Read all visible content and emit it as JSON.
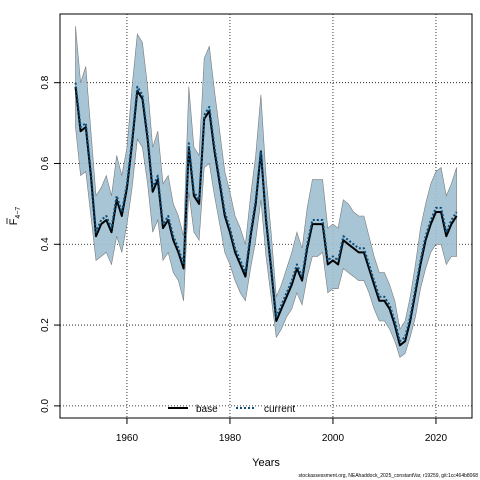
{
  "chart_data": {
    "type": "line",
    "xlabel": "Years",
    "ylabel": "F",
    "ylabel_subscript": "4−7",
    "xlim": [
      1947,
      2027
    ],
    "ylim": [
      -0.03,
      0.97
    ],
    "xticks": [
      1960,
      1980,
      2000,
      2020
    ],
    "yticks": [
      0.0,
      0.2,
      0.4,
      0.6,
      0.8
    ],
    "x_tick_labels": [
      "1960",
      "1980",
      "2000",
      "2020"
    ],
    "y_tick_labels": [
      "0.0",
      "0.2",
      "0.4",
      "0.6",
      "0.8"
    ],
    "grid": true,
    "legend_position": "bottom-center",
    "caption": "stockassessment.org, NEAhaddock_2025_constantVar, r19259, git:1cc464b8068",
    "colors": {
      "band_fill": "#9fbfd1",
      "band_edge": "#7a7a7a",
      "base_line": "#000000",
      "current_line": "#0a4d7a"
    },
    "x": [
      1950,
      1951,
      1952,
      1953,
      1954,
      1955,
      1956,
      1957,
      1958,
      1959,
      1960,
      1961,
      1962,
      1963,
      1964,
      1965,
      1966,
      1967,
      1968,
      1969,
      1970,
      1971,
      1972,
      1973,
      1974,
      1975,
      1976,
      1977,
      1978,
      1979,
      1980,
      1981,
      1982,
      1983,
      1984,
      1985,
      1986,
      1987,
      1988,
      1989,
      1990,
      1991,
      1992,
      1993,
      1994,
      1995,
      1996,
      1997,
      1998,
      1999,
      2000,
      2001,
      2002,
      2003,
      2004,
      2005,
      2006,
      2007,
      2008,
      2009,
      2010,
      2011,
      2012,
      2013,
      2014,
      2015,
      2016,
      2017,
      2018,
      2019,
      2020,
      2021,
      2022,
      2023,
      2024
    ],
    "series": [
      {
        "name": "base",
        "style": "solid",
        "values": [
          0.79,
          0.68,
          0.69,
          0.57,
          0.42,
          0.45,
          0.46,
          0.43,
          0.51,
          0.47,
          0.54,
          0.65,
          0.78,
          0.76,
          0.66,
          0.53,
          0.56,
          0.44,
          0.46,
          0.41,
          0.38,
          0.34,
          0.64,
          0.52,
          0.5,
          0.71,
          0.73,
          0.63,
          0.55,
          0.47,
          0.43,
          0.38,
          0.35,
          0.32,
          0.42,
          0.5,
          0.63,
          0.46,
          0.34,
          0.21,
          0.24,
          0.27,
          0.3,
          0.34,
          0.31,
          0.39,
          0.45,
          0.45,
          0.45,
          0.35,
          0.36,
          0.35,
          0.41,
          0.4,
          0.39,
          0.38,
          0.38,
          0.34,
          0.3,
          0.26,
          0.26,
          0.24,
          0.2,
          0.15,
          0.16,
          0.21,
          0.28,
          0.35,
          0.41,
          0.45,
          0.48,
          0.48,
          0.42,
          0.45,
          0.47
        ]
      },
      {
        "name": "current",
        "style": "dotted",
        "values": [
          0.8,
          0.69,
          0.7,
          0.58,
          0.43,
          0.46,
          0.47,
          0.44,
          0.52,
          0.48,
          0.55,
          0.66,
          0.79,
          0.77,
          0.67,
          0.54,
          0.57,
          0.45,
          0.47,
          0.42,
          0.39,
          0.35,
          0.65,
          0.53,
          0.51,
          0.72,
          0.74,
          0.64,
          0.56,
          0.48,
          0.44,
          0.39,
          0.36,
          0.33,
          0.43,
          0.51,
          0.63,
          0.47,
          0.35,
          0.22,
          0.25,
          0.28,
          0.31,
          0.35,
          0.32,
          0.4,
          0.46,
          0.46,
          0.46,
          0.36,
          0.37,
          0.36,
          0.42,
          0.41,
          0.4,
          0.39,
          0.39,
          0.35,
          0.31,
          0.27,
          0.27,
          0.25,
          0.21,
          0.16,
          0.17,
          0.22,
          0.29,
          0.36,
          0.42,
          0.46,
          0.49,
          0.49,
          0.43,
          0.46,
          0.48
        ]
      }
    ],
    "band": {
      "lower": [
        0.69,
        0.57,
        0.58,
        0.47,
        0.36,
        0.37,
        0.38,
        0.35,
        0.42,
        0.38,
        0.45,
        0.54,
        0.66,
        0.64,
        0.55,
        0.43,
        0.46,
        0.36,
        0.38,
        0.33,
        0.31,
        0.26,
        0.53,
        0.43,
        0.41,
        0.59,
        0.6,
        0.52,
        0.45,
        0.38,
        0.35,
        0.31,
        0.28,
        0.26,
        0.34,
        0.41,
        0.51,
        0.37,
        0.27,
        0.17,
        0.19,
        0.22,
        0.24,
        0.28,
        0.25,
        0.32,
        0.37,
        0.37,
        0.38,
        0.28,
        0.29,
        0.29,
        0.34,
        0.33,
        0.32,
        0.31,
        0.31,
        0.28,
        0.24,
        0.21,
        0.21,
        0.19,
        0.16,
        0.12,
        0.13,
        0.17,
        0.22,
        0.29,
        0.34,
        0.38,
        0.4,
        0.4,
        0.35,
        0.37,
        0.37
      ],
      "upper": [
        0.94,
        0.8,
        0.84,
        0.68,
        0.52,
        0.54,
        0.57,
        0.52,
        0.62,
        0.57,
        0.64,
        0.79,
        0.92,
        0.9,
        0.79,
        0.64,
        0.68,
        0.55,
        0.57,
        0.5,
        0.47,
        0.42,
        0.79,
        0.64,
        0.62,
        0.86,
        0.89,
        0.78,
        0.68,
        0.58,
        0.53,
        0.47,
        0.44,
        0.4,
        0.52,
        0.62,
        0.77,
        0.57,
        0.43,
        0.27,
        0.3,
        0.34,
        0.38,
        0.43,
        0.39,
        0.49,
        0.56,
        0.56,
        0.56,
        0.44,
        0.45,
        0.44,
        0.51,
        0.5,
        0.48,
        0.47,
        0.47,
        0.42,
        0.37,
        0.33,
        0.33,
        0.3,
        0.26,
        0.19,
        0.21,
        0.27,
        0.35,
        0.44,
        0.5,
        0.55,
        0.58,
        0.59,
        0.52,
        0.55,
        0.59
      ]
    }
  }
}
